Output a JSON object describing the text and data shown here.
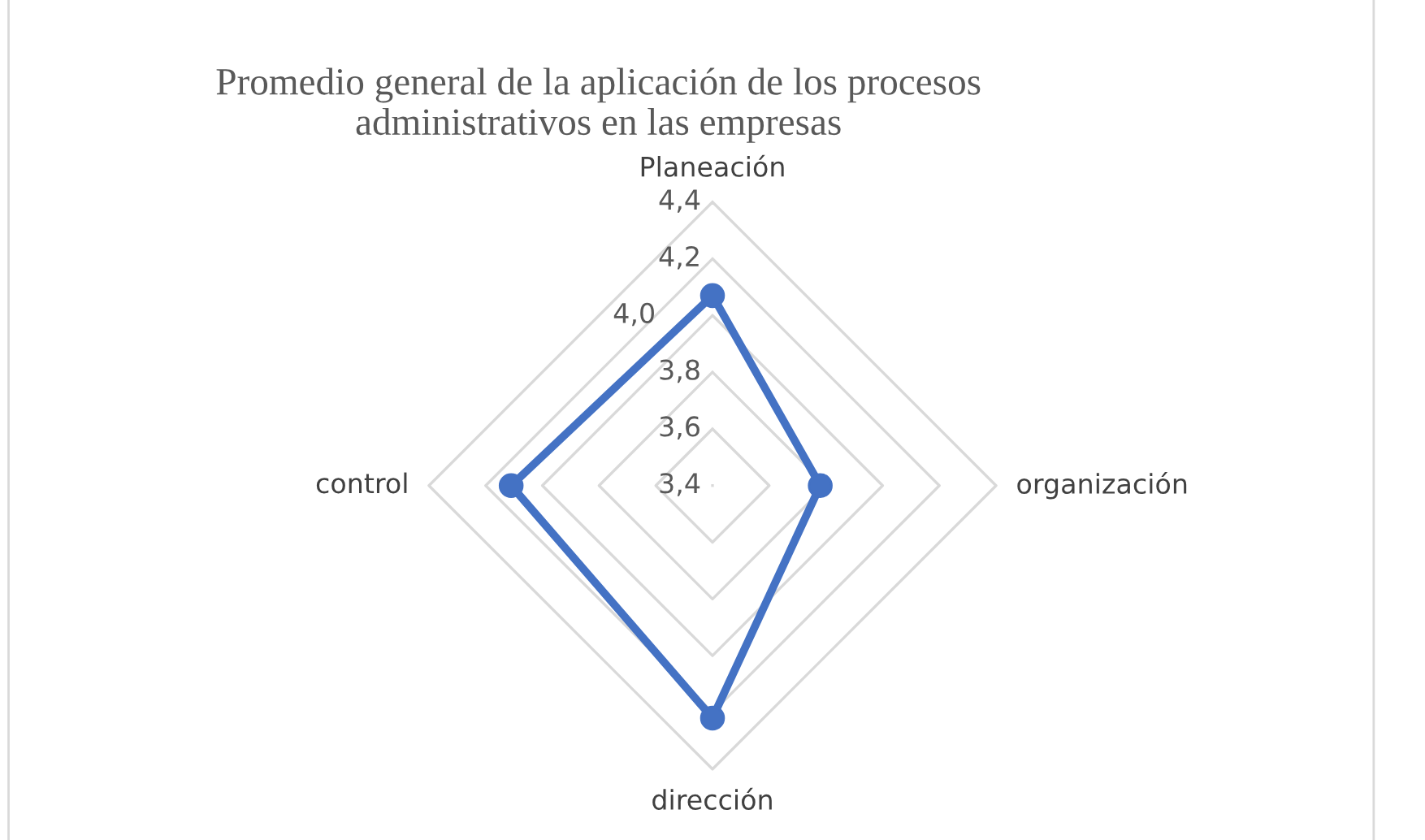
{
  "chart_data": {
    "type": "radar",
    "title": "Promedio general de la aplicación de los procesos\nadministrativos en las empresas",
    "categories": [
      "Planeación",
      "organización",
      "dirección",
      "control"
    ],
    "series": [
      {
        "color": "#4472c4",
        "values": [
          4.07,
          3.78,
          4.22,
          4.11
        ]
      }
    ],
    "ylim": [
      3.4,
      4.4
    ],
    "yticks": [
      {
        "value": 3.4,
        "label": "3,4"
      },
      {
        "value": 3.6,
        "label": "3,6"
      },
      {
        "value": 3.8,
        "label": "3,8"
      },
      {
        "value": 4.0,
        "label": "4,0"
      },
      {
        "value": 4.2,
        "label": "4,2"
      },
      {
        "value": 4.4,
        "label": "4,4"
      }
    ],
    "marker": "circle",
    "line_style": "solid",
    "grid": true,
    "legend": false
  }
}
